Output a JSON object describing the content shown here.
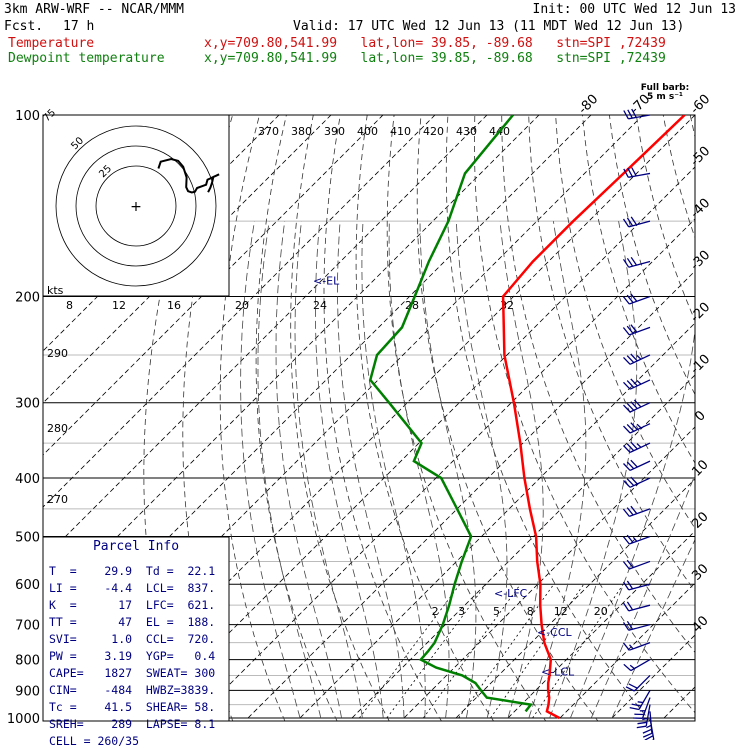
{
  "header": {
    "model": "3km ARW-WRF -- NCAR/MMM",
    "init": "Init: 00 UTC Wed 12 Jun 13",
    "fcst_label": "Fcst.",
    "fcst_value": "17 h",
    "valid": "Valid: 17 UTC Wed 12 Jun 13 (11 MDT Wed 12 Jun 13)",
    "series": [
      {
        "name": "Temperature",
        "location": "x,y=709.80,541.99   lat,lon= 39.85, -89.68   stn=SPI ,72439",
        "color": "#d01010"
      },
      {
        "name": "Dewpoint temperature",
        "location": "x,y=709.80,541.99   lat,lon= 39.85, -89.68   stn=SPI ,72439",
        "color": "#108010"
      }
    ]
  },
  "full_barb": {
    "line1": "Full barb:",
    "line2": "5 m s⁻¹"
  },
  "parcel_info": {
    "title": "Parcel Info",
    "rows": [
      "T  =    29.9  Td =  22.1",
      "LI =    -4.4  LCL=  837.",
      "K  =      17  LFC=  621.",
      "TT =      47  EL =  188.",
      "SVI=     1.0  CCL=  720.",
      "PW =    3.19  YGP=   0.4",
      "CAPE=   1827  SWEAT= 300",
      "CIN=    -484  HWBZ=3839.",
      "Tc =    41.5  SHEAR= 58.",
      "SREH=    289  LAPSE= 8.1",
      "CELL = 260/35"
    ]
  },
  "levels": [
    {
      "text": "<-EL",
      "p": 188
    },
    {
      "text": "<-LFC",
      "p": 621
    },
    {
      "text": "<-CCL",
      "p": 720
    },
    {
      "text": "<-LCL",
      "p": 837
    }
  ],
  "chart_data": {
    "type": "line",
    "subtype": "skew-t log-p sounding",
    "yaxis": {
      "label": "pressure (hPa)",
      "log_scale": true,
      "ylim": [
        1000,
        100
      ],
      "ticks": [
        100,
        200,
        300,
        400,
        500,
        600,
        700,
        800,
        900,
        1000
      ]
    },
    "temperature_ticks": [
      -80,
      -70,
      -60,
      -50,
      -40,
      -30,
      -20,
      -10,
      0,
      10,
      20,
      30,
      40
    ],
    "theta_e_labels": [
      "370",
      "380",
      "390",
      "400",
      "410",
      "420",
      "430",
      "440"
    ],
    "theta_labels": [
      "290",
      "280",
      "270"
    ],
    "mixing_ratio_labels": [
      "2",
      "3",
      "5",
      "8",
      "12",
      "20"
    ],
    "series": [
      {
        "name": "Temperature",
        "color": "#ff0000",
        "points": [
          [
            1000,
            29.9
          ],
          [
            975,
            26.2
          ],
          [
            950,
            25.2
          ],
          [
            925,
            24.0
          ],
          [
            900,
            22.4
          ],
          [
            875,
            21.0
          ],
          [
            850,
            19.8
          ],
          [
            800,
            17.0
          ],
          [
            750,
            12.5
          ],
          [
            700,
            8.5
          ],
          [
            650,
            4.5
          ],
          [
            600,
            0.5
          ],
          [
            550,
            -4.5
          ],
          [
            500,
            -9.5
          ],
          [
            450,
            -16.0
          ],
          [
            400,
            -23.0
          ],
          [
            350,
            -30.5
          ],
          [
            300,
            -39.5
          ],
          [
            250,
            -50.5
          ],
          [
            200,
            -62.0
          ],
          [
            175,
            -63.0
          ],
          [
            150,
            -63.0
          ],
          [
            125,
            -62.5
          ],
          [
            100,
            -62.0
          ]
        ]
      },
      {
        "name": "Dewpoint temperature",
        "color": "#008000",
        "points": [
          [
            975,
            22.1
          ],
          [
            950,
            21.8
          ],
          [
            925,
            12.0
          ],
          [
            900,
            9.5
          ],
          [
            875,
            7.0
          ],
          [
            850,
            3.0
          ],
          [
            825,
            -3.5
          ],
          [
            800,
            -8.0
          ],
          [
            775,
            -8.2
          ],
          [
            750,
            -8.6
          ],
          [
            700,
            -10.5
          ],
          [
            650,
            -13.0
          ],
          [
            600,
            -16.0
          ],
          [
            550,
            -19.0
          ],
          [
            500,
            -22.0
          ],
          [
            450,
            -30.0
          ],
          [
            400,
            -39.0
          ],
          [
            375,
            -47.5
          ],
          [
            350,
            -49.5
          ],
          [
            300,
            -63.5
          ],
          [
            275,
            -71.5
          ],
          [
            250,
            -75.0
          ],
          [
            225,
            -75.5
          ],
          [
            200,
            -79.0
          ],
          [
            175,
            -83.0
          ],
          [
            150,
            -87.0
          ],
          [
            125,
            -93.0
          ],
          [
            100,
            -95.0
          ]
        ]
      }
    ],
    "hodograph": {
      "units": "kts",
      "ring_labels": [
        "25",
        "50",
        "75"
      ],
      "speed_labels": [
        "8",
        "12",
        "16",
        "20",
        "24",
        "28",
        "32"
      ]
    },
    "wind_barbs_kt": [
      {
        "p": 1000,
        "dir": 170,
        "spd": 20
      },
      {
        "p": 975,
        "dir": 175,
        "spd": 24
      },
      {
        "p": 950,
        "dir": 190,
        "spd": 26
      },
      {
        "p": 925,
        "dir": 200,
        "spd": 26
      },
      {
        "p": 900,
        "dir": 210,
        "spd": 24
      },
      {
        "p": 850,
        "dir": 225,
        "spd": 20
      },
      {
        "p": 800,
        "dir": 240,
        "spd": 16
      },
      {
        "p": 750,
        "dir": 250,
        "spd": 16
      },
      {
        "p": 700,
        "dir": 255,
        "spd": 18
      },
      {
        "p": 650,
        "dir": 255,
        "spd": 18
      },
      {
        "p": 600,
        "dir": 255,
        "spd": 20
      },
      {
        "p": 550,
        "dir": 250,
        "spd": 22
      },
      {
        "p": 500,
        "dir": 250,
        "spd": 26
      },
      {
        "p": 450,
        "dir": 250,
        "spd": 28
      },
      {
        "p": 400,
        "dir": 245,
        "spd": 30
      },
      {
        "p": 375,
        "dir": 245,
        "spd": 32
      },
      {
        "p": 350,
        "dir": 245,
        "spd": 34
      },
      {
        "p": 325,
        "dir": 245,
        "spd": 36
      },
      {
        "p": 300,
        "dir": 245,
        "spd": 38
      },
      {
        "p": 275,
        "dir": 245,
        "spd": 36
      },
      {
        "p": 250,
        "dir": 245,
        "spd": 34
      },
      {
        "p": 225,
        "dir": 250,
        "spd": 32
      },
      {
        "p": 200,
        "dir": 250,
        "spd": 32
      },
      {
        "p": 175,
        "dir": 255,
        "spd": 30
      },
      {
        "p": 150,
        "dir": 255,
        "spd": 30
      },
      {
        "p": 125,
        "dir": 260,
        "spd": 28
      },
      {
        "p": 100,
        "dir": 260,
        "spd": 28
      }
    ]
  }
}
